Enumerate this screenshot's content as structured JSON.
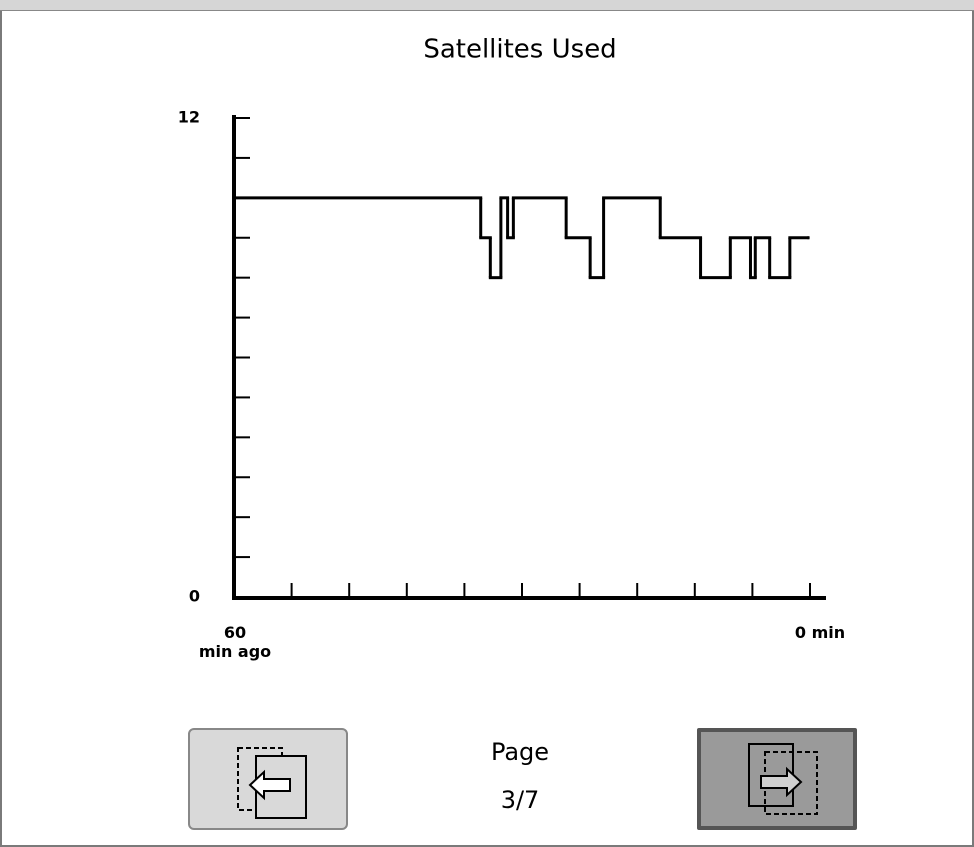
{
  "chart_data": {
    "type": "line",
    "drawstyle": "steps-post",
    "title": "Satellites Used",
    "x": [
      60,
      34.3,
      33.3,
      32.2,
      31.5,
      30.9,
      25.4,
      22.9,
      21.5,
      15.6,
      11.4,
      8.3,
      6.2,
      5.7,
      4.2,
      2.1,
      0.2
    ],
    "values": [
      10,
      9,
      8,
      10,
      9,
      10,
      9,
      8,
      10,
      9,
      8,
      9,
      8,
      9,
      8,
      9,
      9
    ],
    "color": "#000000",
    "xlim": [
      60,
      0
    ],
    "xticks": [
      {
        "value": 60,
        "label": "60\nmin ago"
      },
      {
        "value": 0,
        "label": "0 min"
      }
    ],
    "xminor_ticks": [
      54,
      48,
      42,
      36,
      30,
      24,
      18,
      12,
      6
    ],
    "ylim": [
      0,
      12
    ],
    "yticks": [
      0,
      12
    ],
    "yminor_ticks": [
      1,
      2,
      3,
      4,
      5,
      6,
      7,
      8,
      9,
      10,
      11
    ],
    "grid": false
  },
  "pager": {
    "label": "Page",
    "current": "3/7"
  }
}
